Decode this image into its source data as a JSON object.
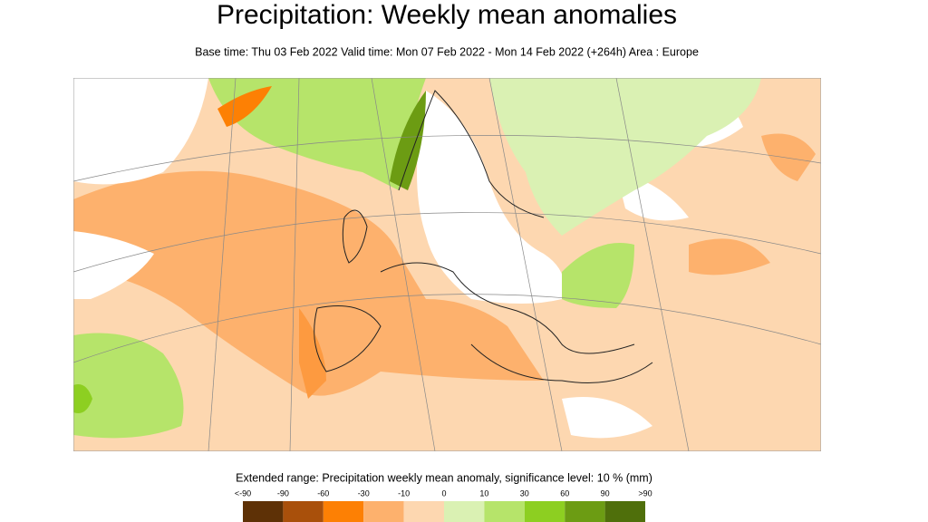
{
  "header": {
    "title": "Precipitation: Weekly mean anomalies",
    "subtitle": "Base time: Thu 03 Feb 2022 Valid time: Mon 07 Feb 2022 - Mon 14 Feb 2022 (+264h) Area : Europe"
  },
  "legend": {
    "title": "Extended range: Precipitation weekly mean anomaly, significance level: 10 % (mm)",
    "labels": [
      "<-90",
      "-90",
      "-60",
      "-30",
      "-10",
      "0",
      "10",
      "30",
      "60",
      "90",
      ">90"
    ],
    "colors": [
      "#5e3106",
      "#a9500b",
      "#fd8004",
      "#fdb16d",
      "#fdd7b0",
      "#daf1b3",
      "#b6e46a",
      "#8dcf21",
      "#6c9c13",
      "#4f6f0b"
    ]
  }
}
